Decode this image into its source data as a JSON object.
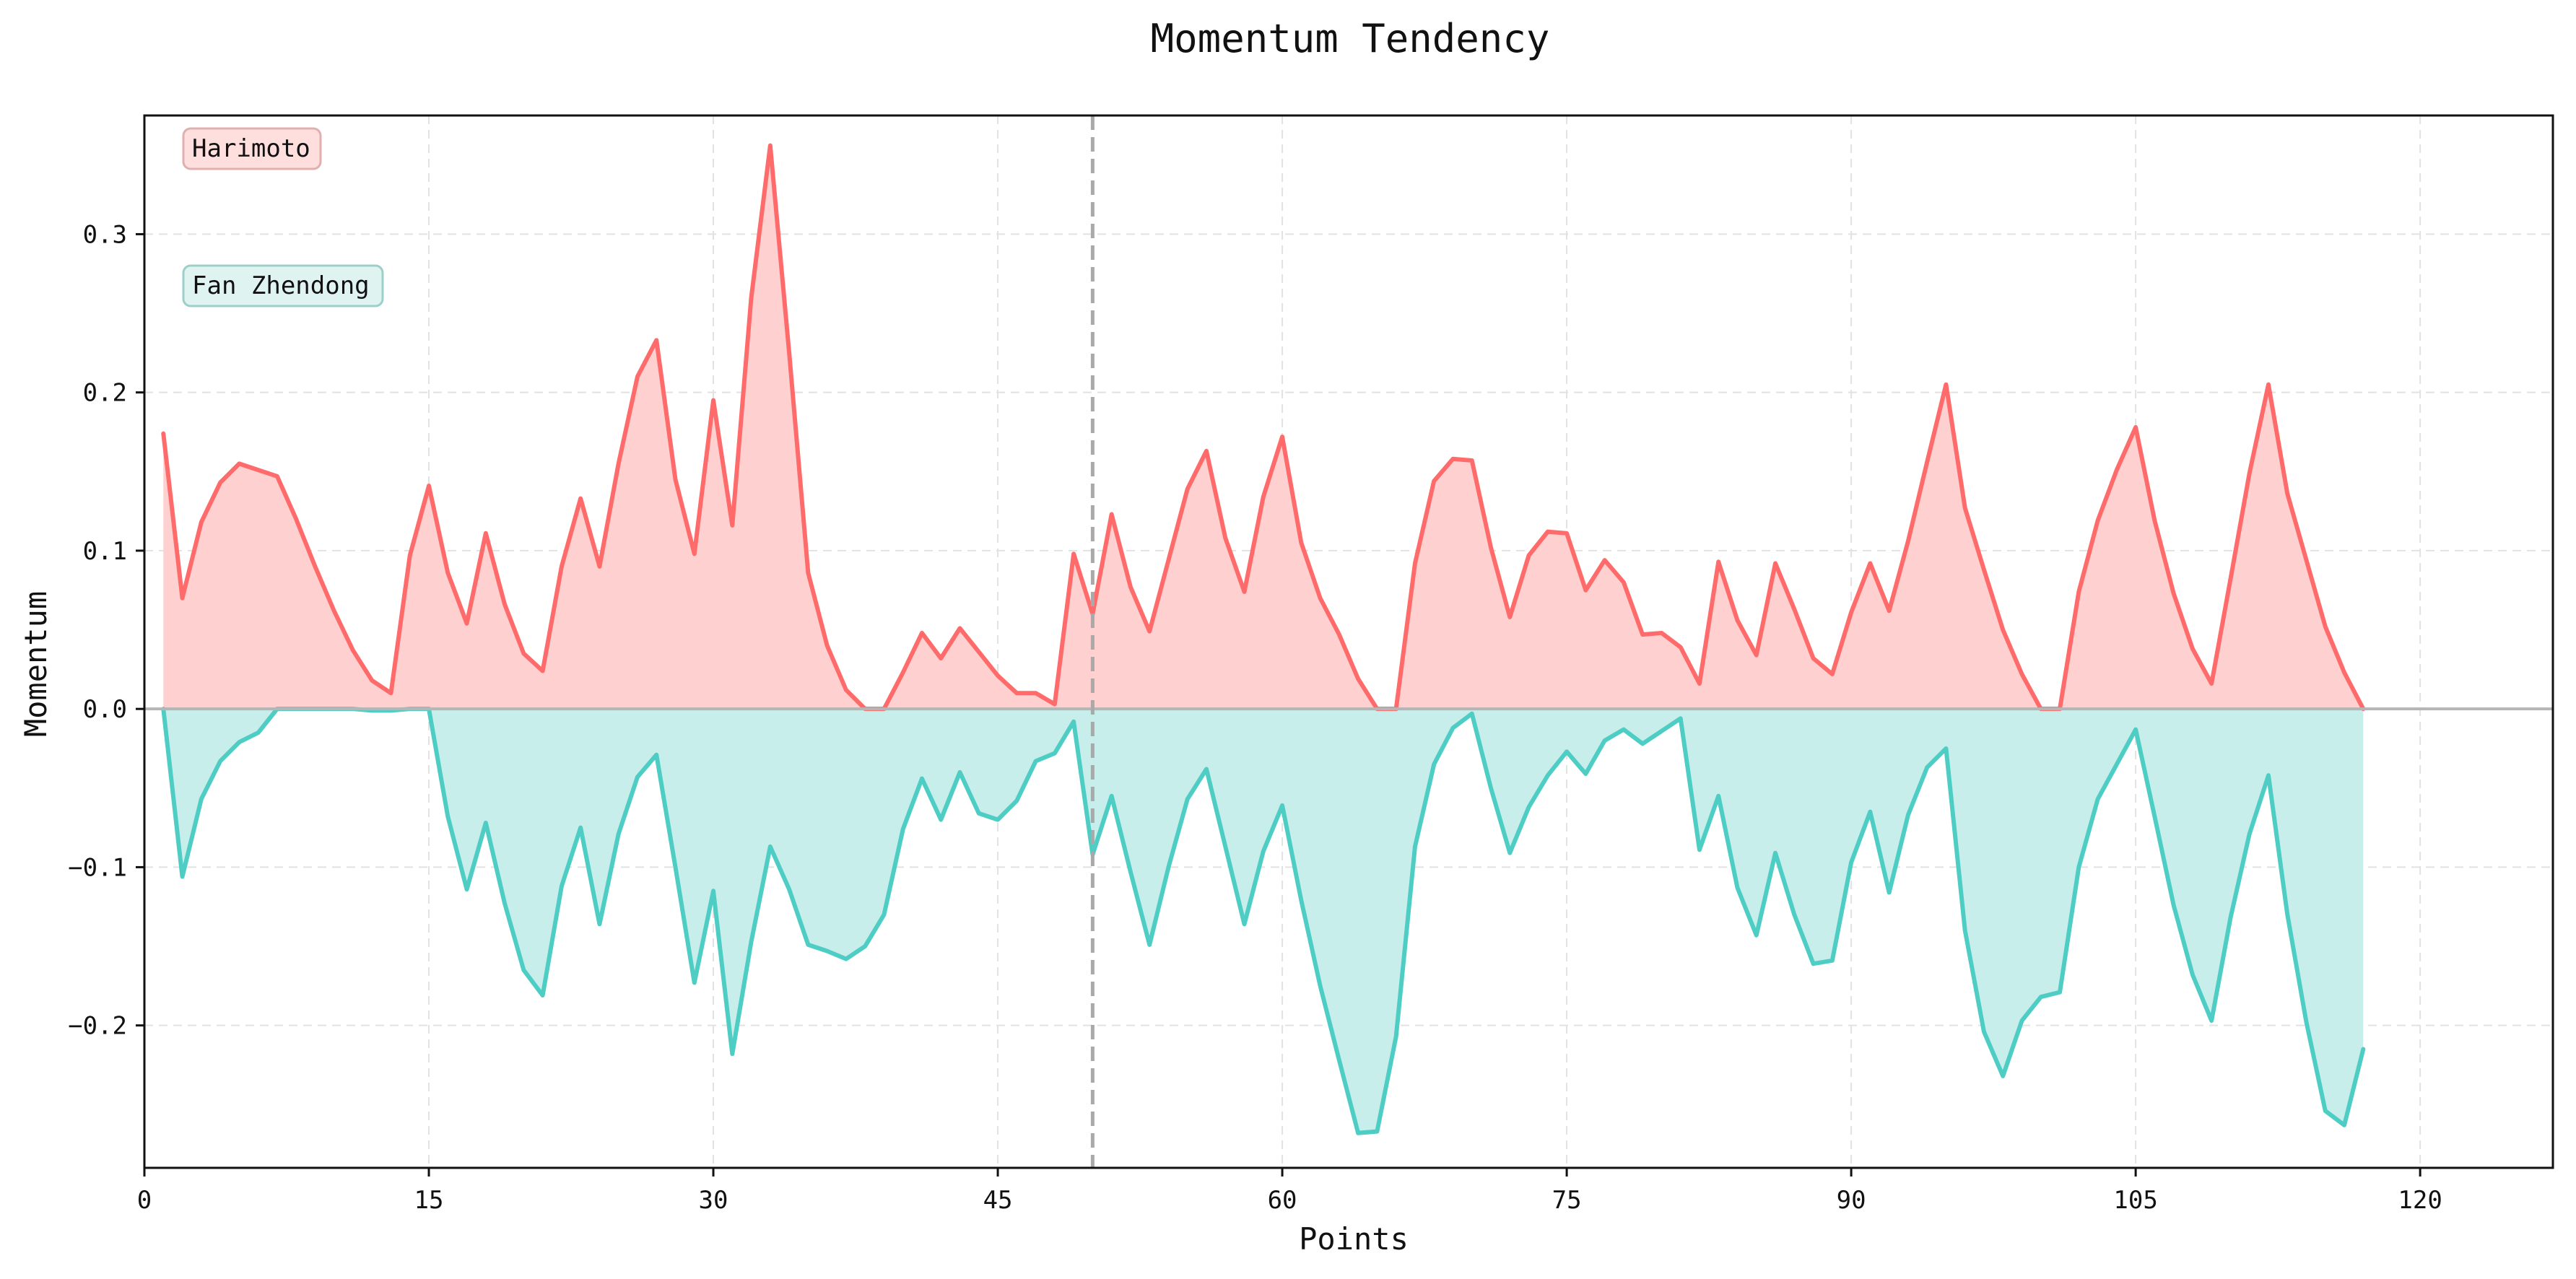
{
  "chart_data": {
    "type": "area",
    "title": "Momentum Tendency",
    "xlabel": "Points",
    "ylabel": "Momentum",
    "xlim": [
      0,
      127
    ],
    "ylim": [
      -0.29,
      0.375
    ],
    "x_ticks": [
      0,
      15,
      30,
      45,
      60,
      75,
      90,
      105,
      120
    ],
    "y_ticks": [
      -0.2,
      -0.1,
      0.0,
      0.1,
      0.2,
      0.3
    ],
    "y_tick_labels": [
      "−0.2",
      "−0.1",
      "0.0",
      "0.1",
      "0.2",
      "0.3"
    ],
    "grid": true,
    "zero_line": true,
    "reference_line_x": 50,
    "legend_placement": "top-left",
    "x": [
      1,
      2,
      3,
      4,
      5,
      6,
      7,
      8,
      9,
      10,
      11,
      12,
      13,
      14,
      15,
      16,
      17,
      18,
      19,
      20,
      21,
      22,
      23,
      24,
      25,
      26,
      27,
      28,
      29,
      30,
      31,
      32,
      33,
      34,
      35,
      36,
      37,
      38,
      39,
      40,
      41,
      42,
      43,
      44,
      45,
      46,
      47,
      48,
      49,
      50,
      51,
      52,
      53,
      54,
      55,
      56,
      57,
      58,
      59,
      60,
      61,
      62,
      63,
      64,
      65,
      66,
      67,
      68,
      69,
      70,
      71,
      72,
      73,
      74,
      75,
      76,
      77,
      78,
      79,
      80,
      81,
      82,
      83,
      84,
      85,
      86,
      87,
      88,
      89,
      90,
      91,
      92,
      93,
      94,
      95,
      96,
      97,
      98,
      99,
      100,
      101,
      102,
      103,
      104,
      105,
      106,
      107,
      108,
      109,
      110,
      111,
      112,
      113,
      114,
      115,
      116,
      117
    ],
    "series": [
      {
        "name": "Harimoto",
        "color": "#ff6b6b",
        "fill": "#ffd0d0",
        "values": [
          0.174,
          0.07,
          0.118,
          0.143,
          0.155,
          0.151,
          0.147,
          0.12,
          0.09,
          0.062,
          0.037,
          0.018,
          0.01,
          0.097,
          0.141,
          0.086,
          0.054,
          0.111,
          0.066,
          0.035,
          0.024,
          0.09,
          0.133,
          0.09,
          0.155,
          0.21,
          0.233,
          0.145,
          0.098,
          0.195,
          0.116,
          0.26,
          0.356,
          0.225,
          0.086,
          0.04,
          0.012,
          0.0,
          0.0,
          0.023,
          0.048,
          0.032,
          0.051,
          0.036,
          0.021,
          0.01,
          0.01,
          0.003,
          0.098,
          0.06,
          0.123,
          0.077,
          0.049,
          0.094,
          0.139,
          0.163,
          0.108,
          0.074,
          0.134,
          0.172,
          0.105,
          0.07,
          0.047,
          0.019,
          0.0,
          0.0,
          0.092,
          0.144,
          0.158,
          0.157,
          0.102,
          0.058,
          0.097,
          0.112,
          0.111,
          0.075,
          0.094,
          0.08,
          0.047,
          0.048,
          0.039,
          0.016,
          0.093,
          0.056,
          0.034,
          0.092,
          0.063,
          0.032,
          0.022,
          0.061,
          0.092,
          0.062,
          0.106,
          0.156,
          0.205,
          0.127,
          0.088,
          0.05,
          0.022,
          0.0,
          0.0,
          0.074,
          0.119,
          0.151,
          0.178,
          0.119,
          0.073,
          0.038,
          0.016,
          0.082,
          0.149,
          0.205,
          0.136,
          0.094,
          0.052,
          0.023,
          0.0
        ]
      },
      {
        "name": "Fan Zhendong",
        "color": "#4ecdc4",
        "fill": "#c7eeea",
        "values": [
          0.0,
          -0.106,
          -0.057,
          -0.033,
          -0.021,
          -0.015,
          0.0,
          0.0,
          0.0,
          0.0,
          0.0,
          -0.001,
          -0.001,
          0.0,
          0.0,
          -0.068,
          -0.114,
          -0.072,
          -0.123,
          -0.165,
          -0.181,
          -0.112,
          -0.075,
          -0.136,
          -0.079,
          -0.043,
          -0.029,
          -0.1,
          -0.173,
          -0.115,
          -0.218,
          -0.147,
          -0.087,
          -0.114,
          -0.149,
          -0.153,
          -0.158,
          -0.15,
          -0.13,
          -0.076,
          -0.044,
          -0.07,
          -0.04,
          -0.066,
          -0.07,
          -0.058,
          -0.033,
          -0.028,
          -0.008,
          -0.092,
          -0.055,
          -0.103,
          -0.149,
          -0.1,
          -0.057,
          -0.038,
          -0.087,
          -0.136,
          -0.09,
          -0.061,
          -0.121,
          -0.175,
          -0.222,
          -0.268,
          -0.267,
          -0.207,
          -0.087,
          -0.035,
          -0.012,
          -0.003,
          -0.05,
          -0.091,
          -0.062,
          -0.042,
          -0.027,
          -0.041,
          -0.02,
          -0.013,
          -0.022,
          -0.014,
          -0.006,
          -0.089,
          -0.055,
          -0.113,
          -0.143,
          -0.091,
          -0.13,
          -0.161,
          -0.159,
          -0.097,
          -0.065,
          -0.116,
          -0.067,
          -0.037,
          -0.025,
          -0.14,
          -0.204,
          -0.232,
          -0.197,
          -0.182,
          -0.179,
          -0.1,
          -0.057,
          -0.035,
          -0.013,
          -0.068,
          -0.124,
          -0.168,
          -0.197,
          -0.132,
          -0.079,
          -0.042,
          -0.13,
          -0.198,
          -0.254,
          -0.263,
          -0.215
        ]
      }
    ]
  }
}
